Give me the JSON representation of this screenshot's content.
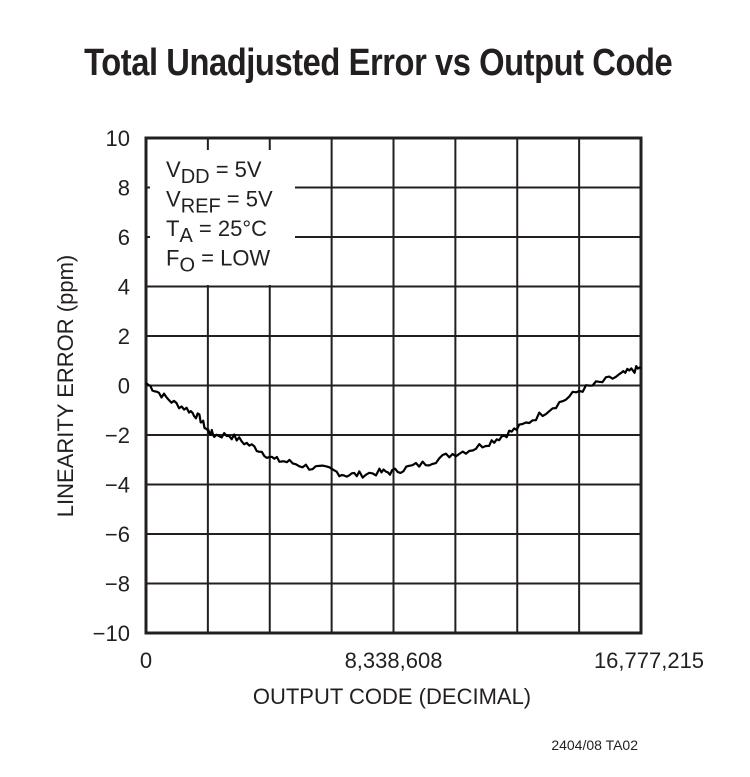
{
  "title": "Total Unadjusted Error vs Output Code",
  "footnote": "2404/08 TA02",
  "conditions": [
    {
      "main": "V",
      "sub": "DD",
      "rest": " = 5V"
    },
    {
      "main": "V",
      "sub": "REF",
      "rest": " = 5V"
    },
    {
      "main": "T",
      "sub": "A",
      "rest": " = 25°C"
    },
    {
      "main": "F",
      "sub": "O",
      "rest": " = LOW"
    }
  ],
  "colors": {
    "line": "#000000",
    "grid": "#231f20",
    "text": "#231f20",
    "background": "#ffffff"
  },
  "chart_data": {
    "type": "line",
    "title": "Total Unadjusted Error vs Output Code",
    "xlabel": "OUTPUT CODE (DECIMAL)",
    "ylabel": "LINEARITY ERROR (ppm)",
    "xlim": [
      0,
      16777215
    ],
    "ylim": [
      -10,
      10
    ],
    "x_tick_labels": [
      "0",
      "8,338,608",
      "16,777,215"
    ],
    "y_ticks": [
      10,
      8,
      6,
      4,
      2,
      0,
      -2,
      -4,
      -6,
      -8,
      -10
    ],
    "y_tick_labels": [
      "10",
      "8",
      "6",
      "4",
      "2",
      "0",
      "−2",
      "−4",
      "−6",
      "−8",
      "−10"
    ],
    "grid": true,
    "grid_x_divisions": 8,
    "grid_y_divisions": 10,
    "annotations": [
      "VDD = 5V",
      "VREF = 5V",
      "TA = 25°C",
      "FO = LOW"
    ],
    "series": [
      {
        "name": "Linearity Error",
        "x": [
          0,
          440000,
          950000,
          1460000,
          1810000,
          2070000,
          2310000,
          2820000,
          3330000,
          3840000,
          4350000,
          4860000,
          5530000,
          6210000,
          6720000,
          7230000,
          7910000,
          8340000,
          8920000,
          9600000,
          10280000,
          10960000,
          11630000,
          12140000,
          12650000,
          13330000,
          14010000,
          14690000,
          15360000,
          16040000,
          16450000,
          16777215
        ],
        "y": [
          0.1,
          -0.3,
          -0.7,
          -1.0,
          -1.3,
          -1.8,
          -2.0,
          -2.0,
          -2.3,
          -2.6,
          -3.0,
          -3.1,
          -3.3,
          -3.4,
          -3.6,
          -3.6,
          -3.5,
          -3.5,
          -3.3,
          -3.1,
          -2.8,
          -2.6,
          -2.3,
          -2.0,
          -1.7,
          -1.2,
          -0.7,
          -0.2,
          0.1,
          0.4,
          0.6,
          0.7
        ]
      }
    ]
  }
}
